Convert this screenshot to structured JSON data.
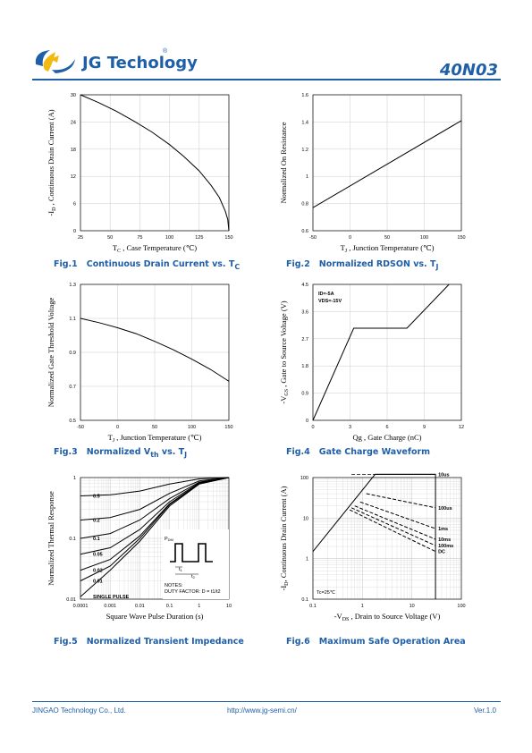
{
  "header": {
    "brand_jg": "JG",
    "brand_rest": "Techology",
    "reg_mark": "®",
    "part_number": "40N03"
  },
  "footer": {
    "company": "JINGAO Technology Co., Ltd.",
    "url": "http://www.jg-semi.cn/",
    "version": "Ver.1.0"
  },
  "colors": {
    "brand": "#1f5fa8",
    "curve": "#000000",
    "grid": "#cccccc"
  },
  "figures": [
    {
      "number": "Fig.1",
      "caption": "Continuous Drain Current vs. T",
      "caption_sub": "C"
    },
    {
      "number": "Fig.2",
      "caption": "Normalized RDSON vs. T",
      "caption_sub": "J"
    },
    {
      "number": "Fig.3",
      "caption": "Normalized V",
      "caption_sub": "th",
      "caption_tail": " vs. T",
      "caption_sub2": "J"
    },
    {
      "number": "Fig.4",
      "caption": "Gate Charge Waveform"
    },
    {
      "number": "Fig.5",
      "caption": "Normalized Transient Impedance"
    },
    {
      "number": "Fig.6",
      "caption": "Maximum Safe Operation Area"
    }
  ],
  "chart_data": [
    {
      "type": "line",
      "xlabel": "T",
      "xlabel_sub": "C",
      "xlabel_tail": " , Case Temperature (℃)",
      "ylabel": "-I",
      "ylabel_sub": "D",
      "ylabel_tail": " , Continuous Drain Current (A)",
      "xlim": [
        25,
        150
      ],
      "ylim": [
        0,
        30
      ],
      "xticks": [
        "25",
        "50",
        "75",
        "100",
        "125",
        "150"
      ],
      "yticks": [
        "0",
        "6",
        "12",
        "18",
        "24",
        "30"
      ],
      "series": [
        {
          "x": [
            25,
            40,
            55,
            70,
            85,
            100,
            112,
            125,
            135,
            142,
            147,
            149,
            150
          ],
          "y": [
            30,
            28.3,
            26.4,
            24.2,
            21.8,
            19.0,
            16.4,
            13.2,
            10.0,
            7.3,
            4.3,
            2.5,
            0
          ]
        }
      ]
    },
    {
      "type": "line",
      "xlabel": "T",
      "xlabel_sub": "J",
      "xlabel_tail": " , Junction Temperature (℃)",
      "ylabel": "Normalized On Resistance",
      "xlim": [
        -50,
        150
      ],
      "ylim": [
        0.6,
        1.6
      ],
      "xticks": [
        "-50",
        "0",
        "50",
        "100",
        "150"
      ],
      "yticks": [
        "0.6",
        "0.8",
        "1",
        "1.2",
        "1.4",
        "1.6"
      ],
      "series": [
        {
          "x": [
            -50,
            150
          ],
          "y": [
            0.77,
            1.41
          ]
        }
      ]
    },
    {
      "type": "line",
      "xlabel": "T",
      "xlabel_sub": "J",
      "xlabel_tail": " , Junction Temperature (℃)",
      "ylabel": "Normalized Gate Threshold Voltage",
      "xlim": [
        -50,
        150
      ],
      "ylim": [
        0.5,
        1.3
      ],
      "xticks": [
        "-50",
        "0",
        "50",
        "100",
        "150"
      ],
      "yticks": [
        "0.5",
        "0.7",
        "0.9",
        "1.1",
        "1.3"
      ],
      "series": [
        {
          "x": [
            -50,
            -25,
            0,
            25,
            50,
            75,
            100,
            125,
            150
          ],
          "y": [
            1.1,
            1.075,
            1.045,
            1.01,
            0.965,
            0.915,
            0.86,
            0.8,
            0.73
          ]
        }
      ]
    },
    {
      "type": "line",
      "xlabel": "Qg , Gate Charge (nC)",
      "ylabel": "-V",
      "ylabel_sub": "GS",
      "ylabel_tail": " , Gate to Source Voltage (V)",
      "xlim": [
        0,
        12
      ],
      "ylim": [
        0,
        4.5
      ],
      "xticks": [
        "0",
        "3",
        "6",
        "9",
        "12"
      ],
      "yticks": [
        "0",
        "0.9",
        "1.8",
        "2.7",
        "3.6",
        "4.5"
      ],
      "annotations": [
        "ID=-5A",
        "VDS=-15V"
      ],
      "series": [
        {
          "x": [
            0,
            3.3,
            7.6,
            11
          ],
          "y": [
            0,
            3.05,
            3.05,
            4.5
          ]
        }
      ]
    },
    {
      "type": "line",
      "xlabel": "Square Wave Pulse Duration (s)",
      "ylabel": "Normalized Thermal Response",
      "xscale": "log",
      "yscale": "log",
      "xlim": [
        0.0001,
        10
      ],
      "ylim": [
        0.01,
        1
      ],
      "xticks": [
        "0.0001",
        "0.001",
        "0.01",
        "0.1",
        "1",
        "10"
      ],
      "yticks": [
        "0.01",
        "0.1",
        "1"
      ],
      "series": [
        {
          "name": "0.5",
          "x": [
            0.0001,
            0.001,
            0.01,
            0.1,
            1,
            10
          ],
          "y": [
            0.5,
            0.52,
            0.6,
            0.78,
            0.95,
            1
          ]
        },
        {
          "name": "0.2",
          "x": [
            0.0001,
            0.001,
            0.01,
            0.1,
            1,
            10
          ],
          "y": [
            0.2,
            0.22,
            0.3,
            0.55,
            0.88,
            1
          ]
        },
        {
          "name": "0.1",
          "x": [
            0.0001,
            0.001,
            0.01,
            0.1,
            1,
            10
          ],
          "y": [
            0.1,
            0.12,
            0.2,
            0.45,
            0.84,
            1
          ]
        },
        {
          "name": "0.05",
          "x": [
            0.0001,
            0.001,
            0.01,
            0.1,
            1,
            10
          ],
          "y": [
            0.055,
            0.07,
            0.14,
            0.4,
            0.82,
            1
          ]
        },
        {
          "name": "0.02",
          "x": [
            0.0001,
            0.001,
            0.01,
            0.1,
            1,
            10
          ],
          "y": [
            0.03,
            0.045,
            0.11,
            0.37,
            0.8,
            1
          ]
        },
        {
          "name": "0.01",
          "x": [
            0.0001,
            0.001,
            0.01,
            0.1,
            1,
            10
          ],
          "y": [
            0.02,
            0.035,
            0.1,
            0.36,
            0.79,
            1
          ]
        },
        {
          "name": "SINGLE PULSE",
          "x": [
            0.0001,
            0.001,
            0.01,
            0.1,
            1,
            10
          ],
          "y": [
            0.011,
            0.03,
            0.09,
            0.34,
            0.78,
            1
          ]
        }
      ],
      "inset": {
        "pdm": "P",
        "pdm_sub": "DM",
        "t1": "t",
        "t1_sub": "1",
        "t2": "t",
        "t2_sub": "2",
        "notes": "NOTES:",
        "duty": "DUTY FACTOR: D = t1/t2"
      }
    },
    {
      "type": "line",
      "xlabel": "-V",
      "xlabel_sub": "DS",
      "xlabel_tail": " , Drain to Source Voltage (V)",
      "ylabel": "-I",
      "ylabel_sub": "D",
      "ylabel_tail": ", Continuous Drain Current (A)",
      "xscale": "log",
      "yscale": "log",
      "xlim": [
        0.1,
        100
      ],
      "ylim": [
        0.1,
        100
      ],
      "xticks": [
        "0.1",
        "1",
        "10",
        "100"
      ],
      "yticks": [
        "0.1",
        "1",
        "10",
        "100"
      ],
      "annotation": "Tc=25℃",
      "series": [
        {
          "name": "10us",
          "x": [
            1.8,
            30,
            30
          ],
          "y": [
            120,
            120,
            120
          ]
        },
        {
          "name": "100us",
          "x": [
            1.2,
            30
          ],
          "y": [
            40,
            18
          ]
        },
        {
          "name": "1ms",
          "x": [
            0.9,
            30
          ],
          "y": [
            25,
            5.5
          ]
        },
        {
          "name": "10ms",
          "x": [
            0.7,
            30
          ],
          "y": [
            20,
            3.0
          ]
        },
        {
          "name": "100ms",
          "x": [
            0.6,
            30
          ],
          "y": [
            18,
            2.1
          ]
        },
        {
          "name": "DC",
          "x": [
            0.55,
            30
          ],
          "y": [
            16,
            1.5
          ]
        }
      ]
    }
  ]
}
